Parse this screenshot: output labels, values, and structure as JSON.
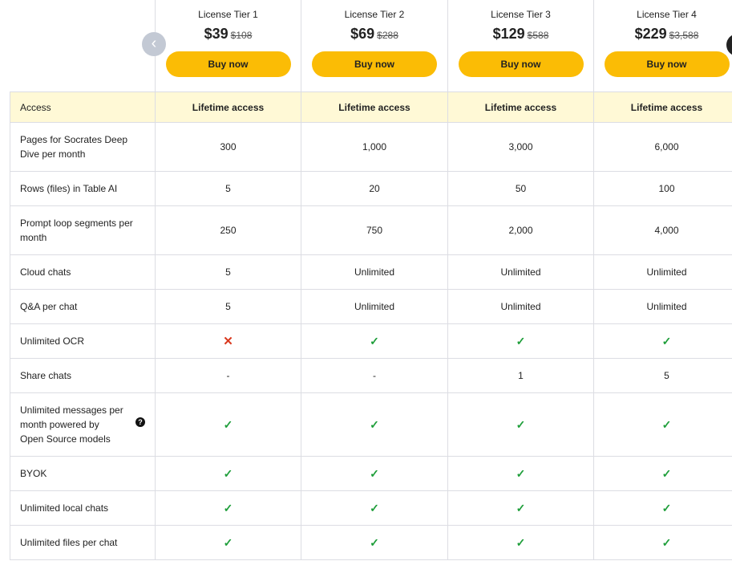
{
  "tiers": [
    {
      "name": "License Tier 1",
      "price": "$39",
      "original": "$108",
      "buy": "Buy now"
    },
    {
      "name": "License Tier 2",
      "price": "$69",
      "original": "$288",
      "buy": "Buy now"
    },
    {
      "name": "License Tier 3",
      "price": "$129",
      "original": "$588",
      "buy": "Buy now"
    },
    {
      "name": "License Tier 4",
      "price": "$229",
      "original": "$3,588",
      "buy": "Buy now"
    }
  ],
  "rows": [
    {
      "label": "Access",
      "values": [
        "Lifetime access",
        "Lifetime access",
        "Lifetime access",
        "Lifetime access"
      ]
    },
    {
      "label": "Pages for Socrates Deep Dive per month",
      "values": [
        "300",
        "1,000",
        "3,000",
        "6,000"
      ]
    },
    {
      "label": "Rows (files) in Table AI",
      "values": [
        "5",
        "20",
        "50",
        "100"
      ]
    },
    {
      "label": "Prompt loop segments per month",
      "values": [
        "250",
        "750",
        "2,000",
        "4,000"
      ]
    },
    {
      "label": "Cloud chats",
      "values": [
        "5",
        "Unlimited",
        "Unlimited",
        "Unlimited"
      ]
    },
    {
      "label": "Q&A per chat",
      "values": [
        "5",
        "Unlimited",
        "Unlimited",
        "Unlimited"
      ]
    },
    {
      "label": "Unlimited OCR",
      "values": [
        "cross",
        "check",
        "check",
        "check"
      ]
    },
    {
      "label": "Share chats",
      "values": [
        "-",
        "-",
        "1",
        "5"
      ]
    },
    {
      "label": "Unlimited messages per month powered by Open Source models",
      "values": [
        "check",
        "check",
        "check",
        "check"
      ],
      "help": true
    },
    {
      "label": "BYOK",
      "values": [
        "check",
        "check",
        "check",
        "check"
      ]
    },
    {
      "label": "Unlimited local chats",
      "values": [
        "check",
        "check",
        "check",
        "check"
      ]
    },
    {
      "label": "Unlimited files per chat",
      "values": [
        "check",
        "check",
        "check",
        "check"
      ]
    }
  ],
  "colors": {
    "accent": "#fbbc05",
    "highlight": "#fff9d6",
    "check": "#1e9e3a",
    "cross": "#d9381e"
  }
}
